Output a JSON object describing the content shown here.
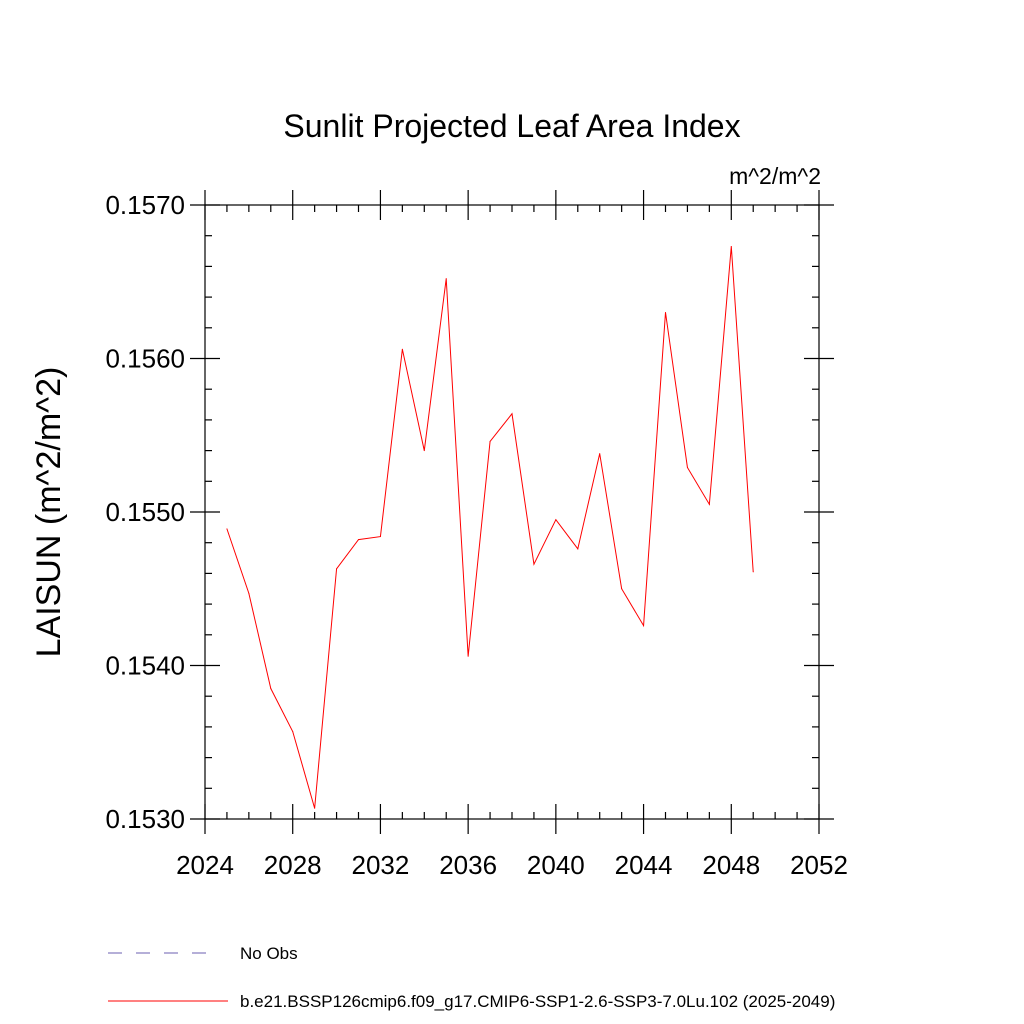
{
  "chart_data": {
    "type": "line",
    "title": "Sunlit Projected Leaf Area Index",
    "units": "m^2/m^2",
    "ylabel": "LAISUN  (m^2/m^2)",
    "xlabel": "",
    "xlim": [
      2024,
      2052
    ],
    "ylim": [
      0.153,
      0.157
    ],
    "xticks": [
      2024,
      2028,
      2032,
      2036,
      2040,
      2044,
      2048,
      2052
    ],
    "xtick_labels": [
      "2024",
      "2028",
      "2032",
      "2036",
      "2040",
      "2044",
      "2048",
      "2052"
    ],
    "yticks": [
      0.153,
      0.154,
      0.155,
      0.156,
      0.157
    ],
    "ytick_labels": [
      "0.1530",
      "0.1540",
      "0.1550",
      "0.1560",
      "0.1570"
    ],
    "grid": false,
    "legend_position": "bottom",
    "series": [
      {
        "name": "b.e21.BSSP126cmip6.f09_g17.CMIP6-SSP1-2.6-SSP3-7.0Lu.102 (2025-2049)",
        "color": "#ff0000",
        "style": "solid",
        "x": [
          2025,
          2026,
          2027,
          2028,
          2029,
          2030,
          2031,
          2032,
          2033,
          2034,
          2035,
          2036,
          2037,
          2038,
          2039,
          2040,
          2041,
          2042,
          2043,
          2044,
          2045,
          2046,
          2047,
          2048,
          2049
        ],
        "values": [
          0.15489,
          0.15447,
          0.15385,
          0.15357,
          0.15307,
          0.15463,
          0.15482,
          0.15484,
          0.15606,
          0.1554,
          0.15652,
          0.15406,
          0.15546,
          0.15564,
          0.15466,
          0.15495,
          0.15476,
          0.15538,
          0.1545,
          0.15426,
          0.1563,
          0.15529,
          0.15505,
          0.15673,
          0.15461
        ]
      }
    ],
    "legend": [
      {
        "label": "No Obs",
        "color": "#6b5fb0",
        "style": "dashed"
      },
      {
        "label": "b.e21.BSSP126cmip6.f09_g17.CMIP6-SSP1-2.6-SSP3-7.0Lu.102 (2025-2049)",
        "color": "#ff0000",
        "style": "solid"
      }
    ]
  }
}
